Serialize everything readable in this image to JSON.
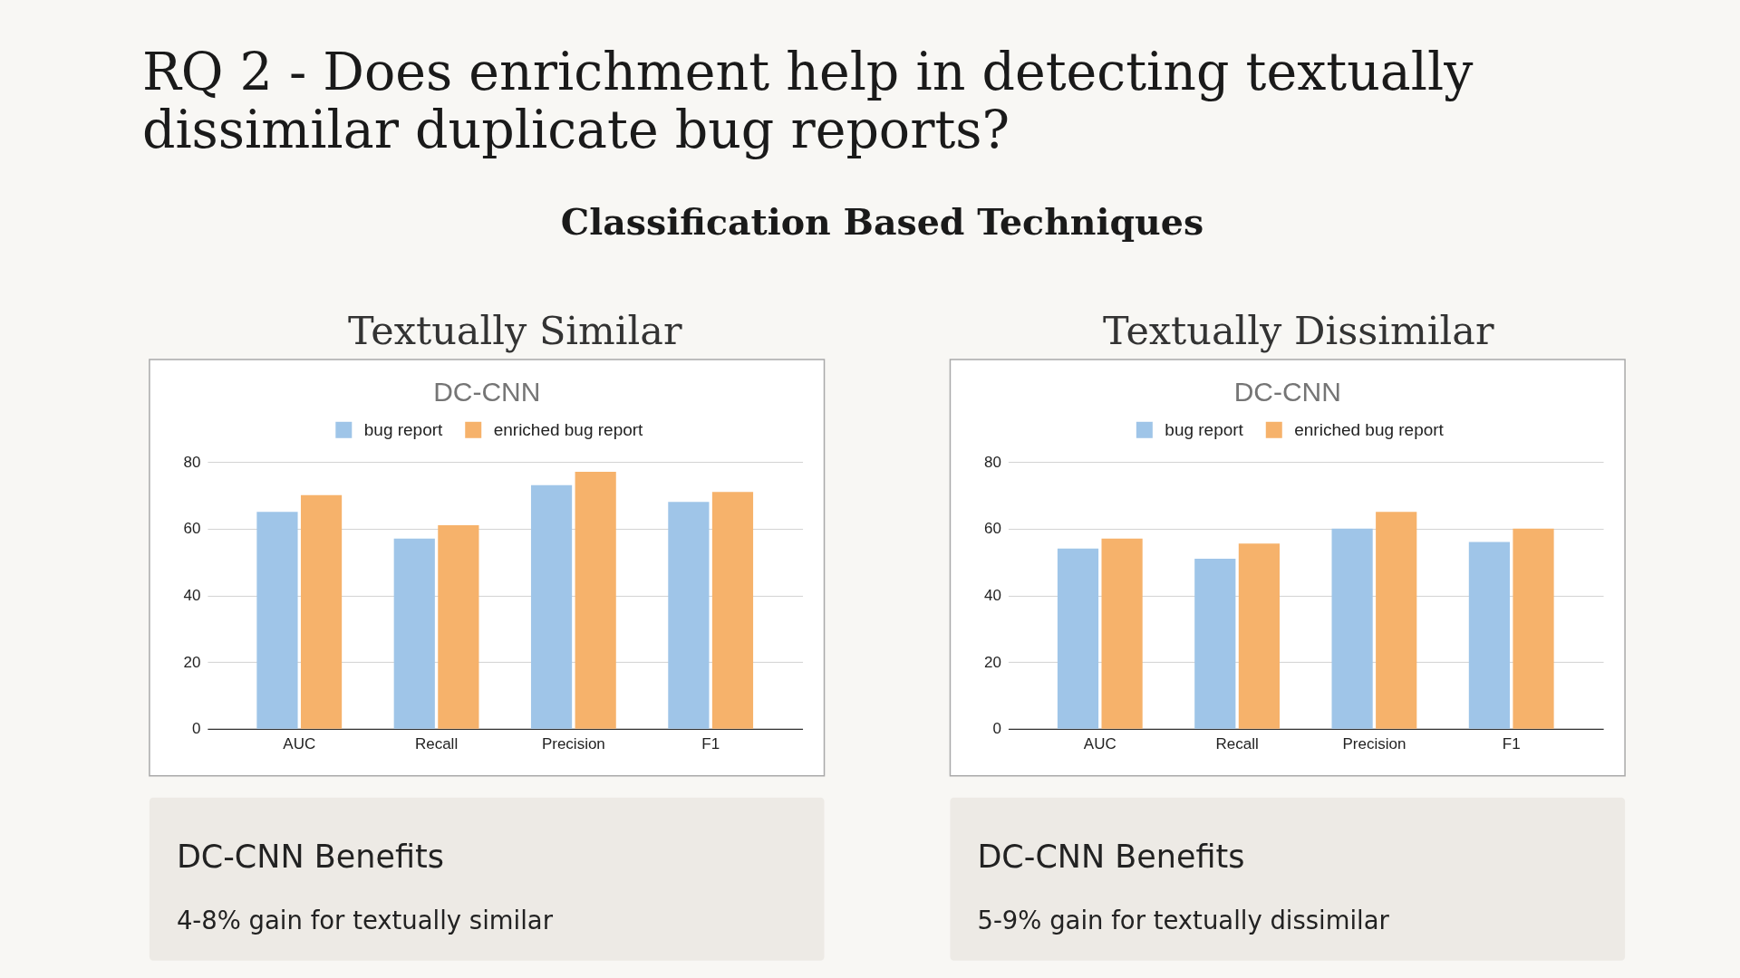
{
  "chart_data": [
    {
      "type": "other",
      "title": "RQ 2 - Does enrichment help in detecting textually dissimilar duplicate bug reports?",
      "subtitle": "Classification Based Techniques"
    },
    {
      "type": "bar",
      "title": "Textually Similar",
      "subtitle": "DC-CNN",
      "categories": [
        "AUC",
        "Recall",
        "Precision",
        "F1"
      ],
      "series": [
        {
          "name": "bug report",
          "color": "#9fc5e8",
          "values": [
            65,
            57,
            73,
            68
          ]
        },
        {
          "name": "enriched bug report",
          "color": "#f6b26b",
          "values": [
            70,
            61,
            77,
            71
          ]
        }
      ],
      "ylim": [
        0,
        80
      ],
      "yticks": [
        0,
        20,
        40,
        60,
        80
      ],
      "grid": "y",
      "legend": "top"
    },
    {
      "type": "bar",
      "title": "Textually Dissimilar",
      "subtitle": "DC-CNN",
      "categories": [
        "AUC",
        "Recall",
        "Precision",
        "F1"
      ],
      "series": [
        {
          "name": "bug report",
          "color": "#9fc5e8",
          "values": [
            54,
            51,
            60,
            56
          ]
        },
        {
          "name": "enriched bug report",
          "color": "#f6b26b",
          "values": [
            57,
            55.5,
            65,
            60
          ]
        }
      ],
      "ylim": [
        0,
        80
      ],
      "yticks": [
        0,
        20,
        40,
        60,
        80
      ],
      "grid": "y",
      "legend": "top"
    },
    {
      "type": "other",
      "title": "DC-CNN Benefits",
      "subtitle": "4-8% gain for textually similar"
    },
    {
      "type": "other",
      "title": "DC-CNN Benefits",
      "subtitle": "5-9% gain for textually dissimilar"
    }
  ]
}
